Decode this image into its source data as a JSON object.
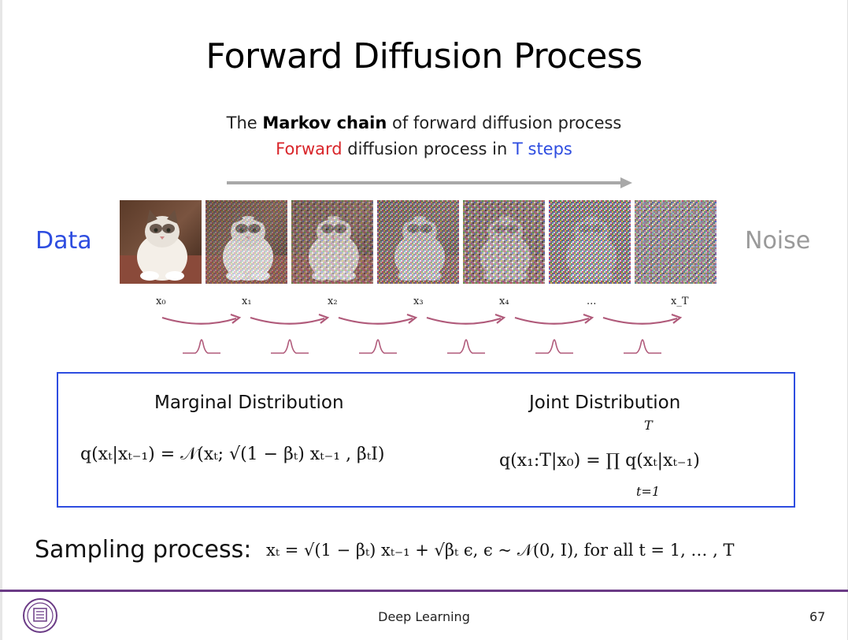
{
  "slide": {
    "title": "Forward Diffusion Process",
    "subtitle_line1": {
      "prefix": "The ",
      "strong": "Markov chain",
      "suffix": " of forward diffusion process"
    },
    "subtitle_line2": {
      "red": "Forward",
      "middle": " diffusion process in ",
      "blue": "T steps"
    },
    "left_label": "Data",
    "right_label": "Noise",
    "state_labels": [
      "x₀",
      "x₁",
      "x₂",
      "x₃",
      "x₄",
      "...",
      "x_T"
    ],
    "colors": {
      "accent_blue": "#2e4de0",
      "accent_red": "#d9262b",
      "arrow": "#b05a7a",
      "footer": "#6b3b86"
    }
  },
  "box": {
    "marginal_heading": "Marginal Distribution",
    "joint_heading": "Joint Distribution",
    "marginal_formula": "q(xₜ|xₜ₋₁) = 𝒩(xₜ; √(1 − βₜ) xₜ₋₁ , βₜI)",
    "joint_formula": "q(x₁:T|x₀) = ∏ q(xₜ|xₜ₋₁)",
    "product_upper": "T",
    "product_lower": "t=1"
  },
  "sampling": {
    "label": "Sampling process:",
    "formula": "xₜ = √(1 − βₜ) xₜ₋₁ + √βₜ ϵ, ϵ ~ 𝒩(0, I), for all t = 1, … , T"
  },
  "footer": {
    "center": "Deep Learning",
    "page_number": "67",
    "logo": "university-seal-icon"
  }
}
